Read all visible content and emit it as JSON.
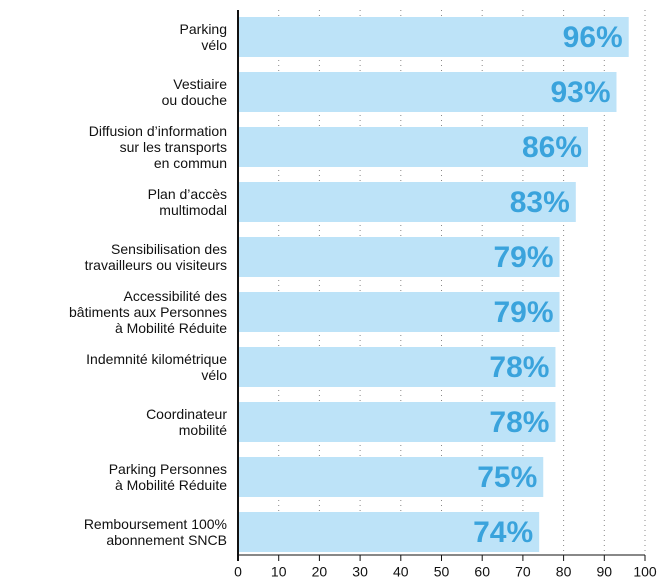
{
  "chart_data": {
    "type": "bar",
    "orientation": "horizontal",
    "categories": [
      "Parking\nvélo",
      "Vestiaire\nou douche",
      "Diffusion d’information\nsur les transports\nen commun",
      "Plan d’accès\nmultimodal",
      "Sensibilisation des\ntravailleurs ou visiteurs",
      "Accessibilité des\nbâtiments aux Personnes\nà Mobilité Réduite",
      "Indemnité kilométrique\nvélo",
      "Coordinateur\nmobilité",
      "Parking Personnes\nà Mobilité Réduite",
      "Remboursement 100%\nabonnement SNCB"
    ],
    "values": [
      96,
      93,
      86,
      83,
      79,
      79,
      78,
      78,
      75,
      74
    ],
    "value_labels": [
      "96%",
      "93%",
      "86%",
      "83%",
      "79%",
      "79%",
      "78%",
      "78%",
      "75%",
      "74%"
    ],
    "color": "#bde3f8",
    "label_color": "#3aa3dc",
    "xlim": [
      0,
      100
    ],
    "xticks": [
      0,
      10,
      20,
      30,
      40,
      50,
      60,
      70,
      80,
      90,
      100
    ],
    "grid": true
  }
}
